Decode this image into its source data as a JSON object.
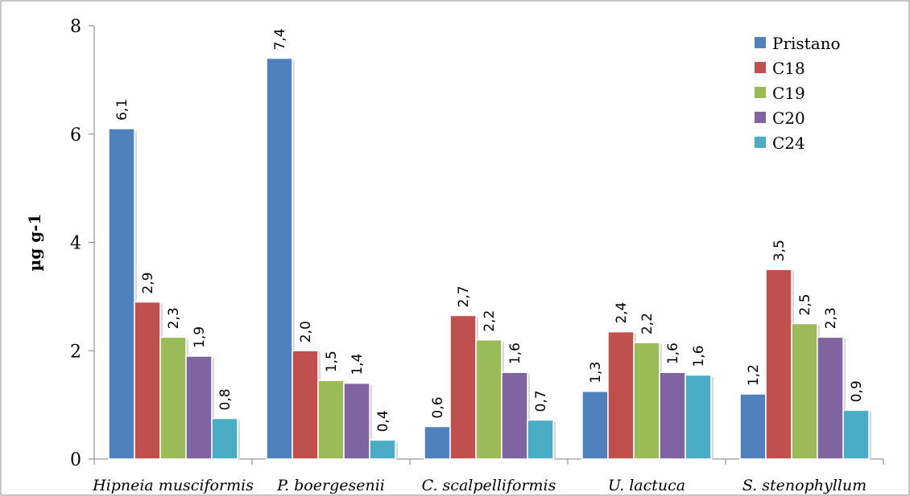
{
  "chart_data": {
    "type": "bar",
    "title": "",
    "xlabel": "",
    "ylabel": "µg g-1",
    "ylim": [
      0,
      8
    ],
    "yticks": [
      0,
      2,
      4,
      6,
      8
    ],
    "grid": false,
    "legend_position": "top-right",
    "categories": [
      "Hipneia musciformis",
      "P. boergesenii",
      "C. scalpelliformis",
      "U. lactuca",
      "S. stenophyllum"
    ],
    "series": [
      {
        "name": "Pristano",
        "color": "#4F81BD",
        "values": [
          6.1,
          7.4,
          0.6,
          1.25,
          1.2
        ],
        "labels": [
          "6,1",
          "7,4",
          "0,6",
          "1,3",
          "1,2"
        ]
      },
      {
        "name": "C18",
        "color": "#C0504D",
        "values": [
          2.9,
          2.0,
          2.65,
          2.35,
          3.5
        ],
        "labels": [
          "2,9",
          "2,0",
          "2,7",
          "2,4",
          "3,5"
        ]
      },
      {
        "name": "C19",
        "color": "#9BBB59",
        "values": [
          2.25,
          1.45,
          2.2,
          2.15,
          2.5
        ],
        "labels": [
          "2,3",
          "1,5",
          "2,2",
          "2,2",
          "2,5"
        ]
      },
      {
        "name": "C20",
        "color": "#8064A2",
        "values": [
          1.9,
          1.4,
          1.6,
          1.6,
          2.25
        ],
        "labels": [
          "1,9",
          "1,4",
          "1,6",
          "1,6",
          "2,3"
        ]
      },
      {
        "name": "C24",
        "color": "#4BACC6",
        "values": [
          0.75,
          0.35,
          0.72,
          1.55,
          0.9
        ],
        "labels": [
          "0,8",
          "0,4",
          "0,7",
          "1,6",
          "0,9"
        ]
      }
    ]
  }
}
